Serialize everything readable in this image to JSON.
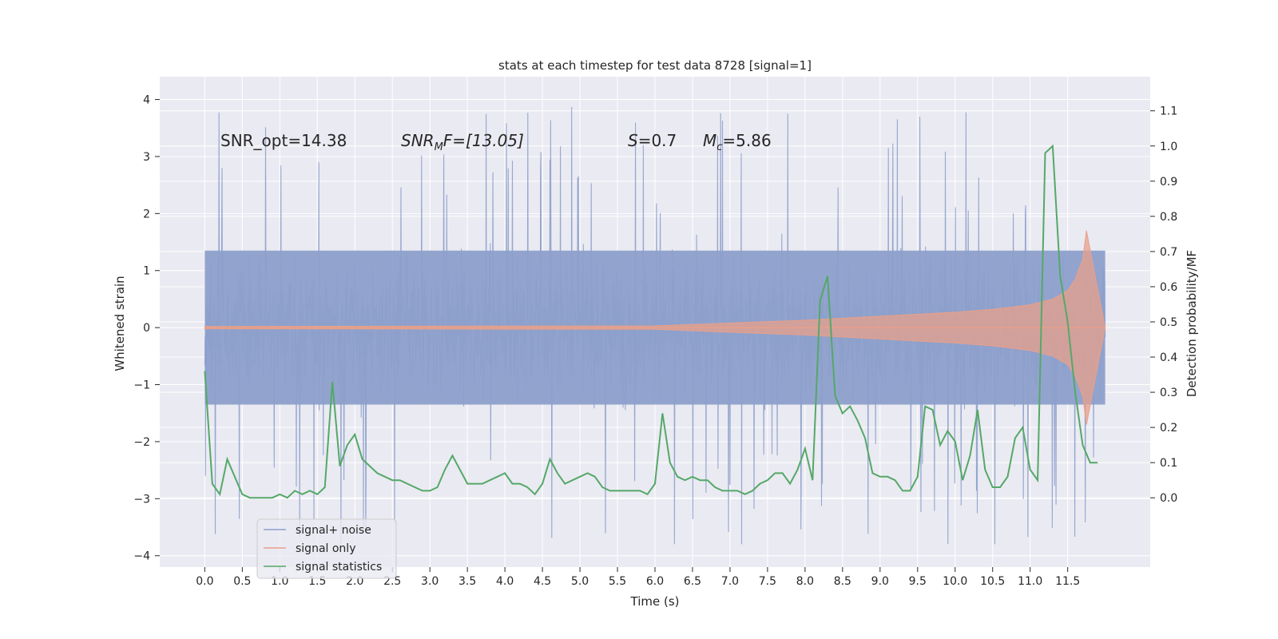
{
  "chart_data": {
    "type": "line",
    "title": "stats at each timestep for test data 8728 [signal=1]",
    "xlabel": "Time (s)",
    "ylabel_left": "Whitened strain",
    "ylabel_right": "Detection probability/MF",
    "xlim": [
      -0.6,
      12.6
    ],
    "ylim_left": [
      -4.2,
      4.4
    ],
    "ylim_right": [
      -0.197,
      1.197
    ],
    "x_ticks": [
      "0.0",
      "0.5",
      "1.0",
      "1.5",
      "2.0",
      "2.5",
      "3.0",
      "3.5",
      "4.0",
      "4.5",
      "5.0",
      "5.5",
      "6.0",
      "6.5",
      "7.0",
      "7.5",
      "8.0",
      "8.5",
      "9.0",
      "9.5",
      "10.0",
      "10.5",
      "11.0",
      "11.5"
    ],
    "y_ticks_left": [
      "4",
      "3",
      "2",
      "1",
      "0",
      "−1",
      "−2",
      "−3",
      "−4"
    ],
    "y_ticks_right": [
      "1.1",
      "1.0",
      "0.9",
      "0.8",
      "0.7",
      "0.6",
      "0.5",
      "0.4",
      "0.3",
      "0.2",
      "0.1",
      "0.0"
    ],
    "grid": true,
    "legend_position": "bottom-left",
    "colors": {
      "signal_noise": "#8da0cb",
      "signal_only": "#e8a08a",
      "signal_statistics": "#55a868",
      "background": "#eaeaf2",
      "grid": "#ffffff"
    },
    "annotations": {
      "snr_opt": "SNR_opt=14.38",
      "snr_mf_sym": "SNR",
      "snr_mf_sub": "M",
      "snr_mf_rest": "F=[13.05]",
      "s_sym": "S",
      "s_val": "=0.7",
      "mc_sym": "M",
      "mc_sub": "c",
      "mc_val": "=5.86"
    },
    "series": [
      {
        "name": "signal+ noise",
        "x_range": [
          0.0,
          12.0
        ],
        "envelope_note_values": "dense noise band roughly within ±1.4 with spikes up to about 4.1 and down to about -3.8"
      },
      {
        "name": "signal only",
        "x": [
          0.0,
          6.0,
          7.0,
          8.0,
          9.0,
          10.0,
          10.5,
          11.0,
          11.3,
          11.5,
          11.6,
          11.7,
          11.75,
          12.0
        ],
        "amplitude": [
          0.02,
          0.03,
          0.08,
          0.13,
          0.2,
          0.27,
          0.32,
          0.4,
          0.5,
          0.65,
          0.85,
          1.2,
          1.7,
          0.0
        ]
      },
      {
        "name": "signal statistics",
        "x": [
          0.0,
          0.1,
          0.2,
          0.3,
          0.4,
          0.5,
          0.6,
          0.7,
          0.8,
          0.9,
          1.0,
          1.1,
          1.2,
          1.3,
          1.4,
          1.5,
          1.6,
          1.7,
          1.8,
          1.9,
          2.0,
          2.1,
          2.2,
          2.3,
          2.4,
          2.5,
          2.6,
          2.7,
          2.8,
          2.9,
          3.0,
          3.1,
          3.2,
          3.3,
          3.4,
          3.5,
          3.6,
          3.7,
          3.8,
          3.9,
          4.0,
          4.1,
          4.2,
          4.3,
          4.4,
          4.5,
          4.6,
          4.7,
          4.8,
          4.9,
          5.0,
          5.1,
          5.2,
          5.3,
          5.4,
          5.5,
          5.6,
          5.7,
          5.8,
          5.9,
          6.0,
          6.1,
          6.2,
          6.3,
          6.4,
          6.5,
          6.6,
          6.7,
          6.8,
          6.9,
          7.0,
          7.1,
          7.2,
          7.3,
          7.4,
          7.5,
          7.6,
          7.7,
          7.8,
          7.9,
          8.0,
          8.1,
          8.2,
          8.3,
          8.4,
          8.5,
          8.6,
          8.7,
          8.8,
          8.9,
          9.0,
          9.1,
          9.2,
          9.3,
          9.4,
          9.5,
          9.6,
          9.7,
          9.8,
          9.9,
          10.0,
          10.1,
          10.2,
          10.3,
          10.4,
          10.5,
          10.6,
          10.7,
          10.8,
          10.9,
          11.0,
          11.1,
          11.2,
          11.3,
          11.4,
          11.5,
          11.6,
          11.7,
          11.8,
          11.9
        ],
        "y": [
          0.36,
          0.04,
          0.01,
          0.11,
          0.06,
          0.01,
          0.0,
          0.0,
          0.0,
          0.0,
          0.01,
          0.0,
          0.02,
          0.01,
          0.02,
          0.01,
          0.03,
          0.33,
          0.09,
          0.15,
          0.18,
          0.11,
          0.09,
          0.07,
          0.06,
          0.05,
          0.05,
          0.04,
          0.03,
          0.02,
          0.02,
          0.03,
          0.08,
          0.12,
          0.08,
          0.04,
          0.04,
          0.04,
          0.05,
          0.06,
          0.07,
          0.04,
          0.04,
          0.03,
          0.01,
          0.04,
          0.11,
          0.07,
          0.04,
          0.05,
          0.06,
          0.07,
          0.06,
          0.03,
          0.02,
          0.02,
          0.02,
          0.02,
          0.02,
          0.01,
          0.04,
          0.24,
          0.1,
          0.06,
          0.05,
          0.06,
          0.05,
          0.05,
          0.03,
          0.02,
          0.02,
          0.02,
          0.01,
          0.02,
          0.04,
          0.05,
          0.07,
          0.07,
          0.04,
          0.08,
          0.14,
          0.05,
          0.56,
          0.63,
          0.29,
          0.24,
          0.26,
          0.22,
          0.17,
          0.07,
          0.06,
          0.06,
          0.05,
          0.02,
          0.02,
          0.06,
          0.26,
          0.25,
          0.15,
          0.19,
          0.16,
          0.05,
          0.12,
          0.25,
          0.08,
          0.03,
          0.03,
          0.06,
          0.17,
          0.2,
          0.08,
          0.05,
          0.98,
          1.0,
          0.63,
          0.5,
          0.3,
          0.15,
          0.1,
          0.1
        ]
      }
    ],
    "legend": {
      "items": [
        "signal+ noise",
        "signal only",
        "signal statistics"
      ]
    }
  }
}
